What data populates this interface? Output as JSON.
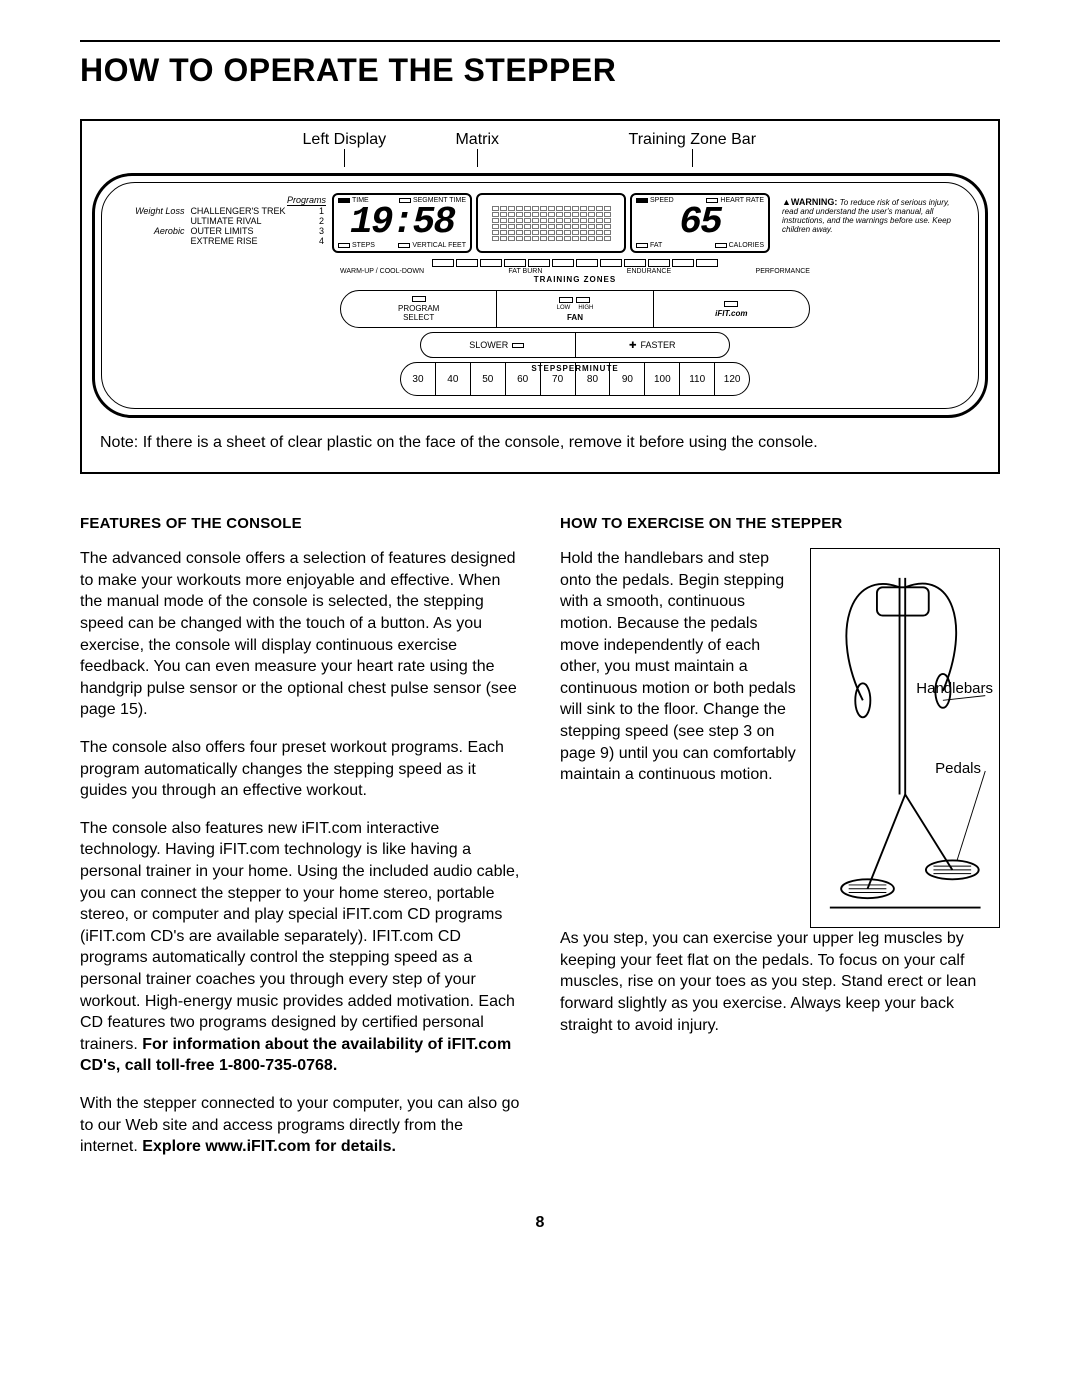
{
  "page_title": "HOW TO OPERATE THE STEPPER",
  "page_number": "8",
  "callouts": {
    "left_display": "Left Display",
    "matrix": "Matrix",
    "training_zone_bar": "Training Zone Bar"
  },
  "programs": {
    "header": "Programs",
    "cat_weightloss": "Weight Loss",
    "cat_aerobic": "Aerobic",
    "items": [
      {
        "name": "CHALLENGER'S TREK",
        "num": "1"
      },
      {
        "name": "ULTIMATE RIVAL",
        "num": "2"
      },
      {
        "name": "OUTER LIMITS",
        "num": "3"
      },
      {
        "name": "EXTREME RISE",
        "num": "4"
      }
    ]
  },
  "left_display": {
    "top_left": "TIME",
    "top_right": "SEGMENT TIME",
    "value": "19:58",
    "bot_left": "STEPS",
    "bot_right": "VERTICAL FEET"
  },
  "right_display": {
    "top_left": "SPEED",
    "top_right": "HEART RATE",
    "value": "65",
    "bot_left": "FAT",
    "bot_right": "CALORIES"
  },
  "warning": {
    "label": "WARNING:",
    "text": "To reduce risk of serious injury, read and understand the user's manual, all instructions, and the warnings before use.  Keep children away."
  },
  "training_zones": {
    "title": "TRAINING ZONES",
    "labels": [
      "WARM-UP / COOL-DOWN",
      "FAT BURN",
      "ENDURANCE",
      "PERFORMANCE"
    ]
  },
  "mid_row": {
    "program_select": "PROGRAM\nSELECT",
    "low": "LOW",
    "high": "HIGH",
    "fan": "FAN",
    "ifit": "iFIT.com"
  },
  "speed_row": {
    "slower": "SLOWER",
    "faster": "FASTER"
  },
  "spm": {
    "title": "STEPSPERMINUTE",
    "values": [
      "30",
      "40",
      "50",
      "60",
      "70",
      "80",
      "90",
      "100",
      "110",
      "120"
    ]
  },
  "console_note": "Note: If there is a sheet of clear plastic on the face of the console, remove it before using the console.",
  "left_col": {
    "heading": "FEATURES OF THE CONSOLE",
    "p1": "The advanced console offers a selection of features designed to make your workouts more enjoyable and effective. When the manual mode of the console is selected, the stepping speed can be changed with the touch of a button. As you exercise, the console will display continuous exercise feedback. You can even measure your heart rate using the handgrip pulse sensor or the optional chest pulse sensor (see page 15).",
    "p2": "The console also offers four preset workout programs. Each program automatically changes the stepping speed as it guides you through an effective workout.",
    "p3a": "The console also features new iFIT.com interactive technology. Having iFIT.com technology is like having a personal trainer in your home. Using the included audio cable, you can connect the stepper to your home stereo, portable stereo, or computer and play special iFIT.com CD programs (iFIT.com CD's are available separately). IFIT.com CD programs automatically control the stepping speed as a personal trainer coaches you through every step of your workout. High-energy music provides added motivation. Each CD features two programs designed by certified personal trainers. ",
    "p3b": "For information about the availability of iFIT.com CD's, call toll-free 1-800-735-0768.",
    "p4a": "With the stepper connected to your computer, you can also go to our Web site and access programs directly from the internet. ",
    "p4b": "Explore www.iFIT.com for details."
  },
  "right_col": {
    "heading": "HOW TO EXERCISE ON THE STEPPER",
    "p1": "Hold the handlebars and step onto the pedals. Begin stepping with a smooth, continuous motion. Because the pedals move independently of each other, you must maintain a continuous motion or both pedals will sink to the floor. Change the stepping speed (see step 3 on page 9) until you can comfortably maintain a continuous motion.",
    "p2": "As you step, you can exercise your upper leg muscles by keeping your feet flat on the pedals. To focus on your calf muscles, rise on your toes as you step. Stand erect or lean forward slightly as you exercise. Always keep your back straight to avoid injury.",
    "fig_handlebars": "Handlebars",
    "fig_pedals": "Pedals"
  }
}
